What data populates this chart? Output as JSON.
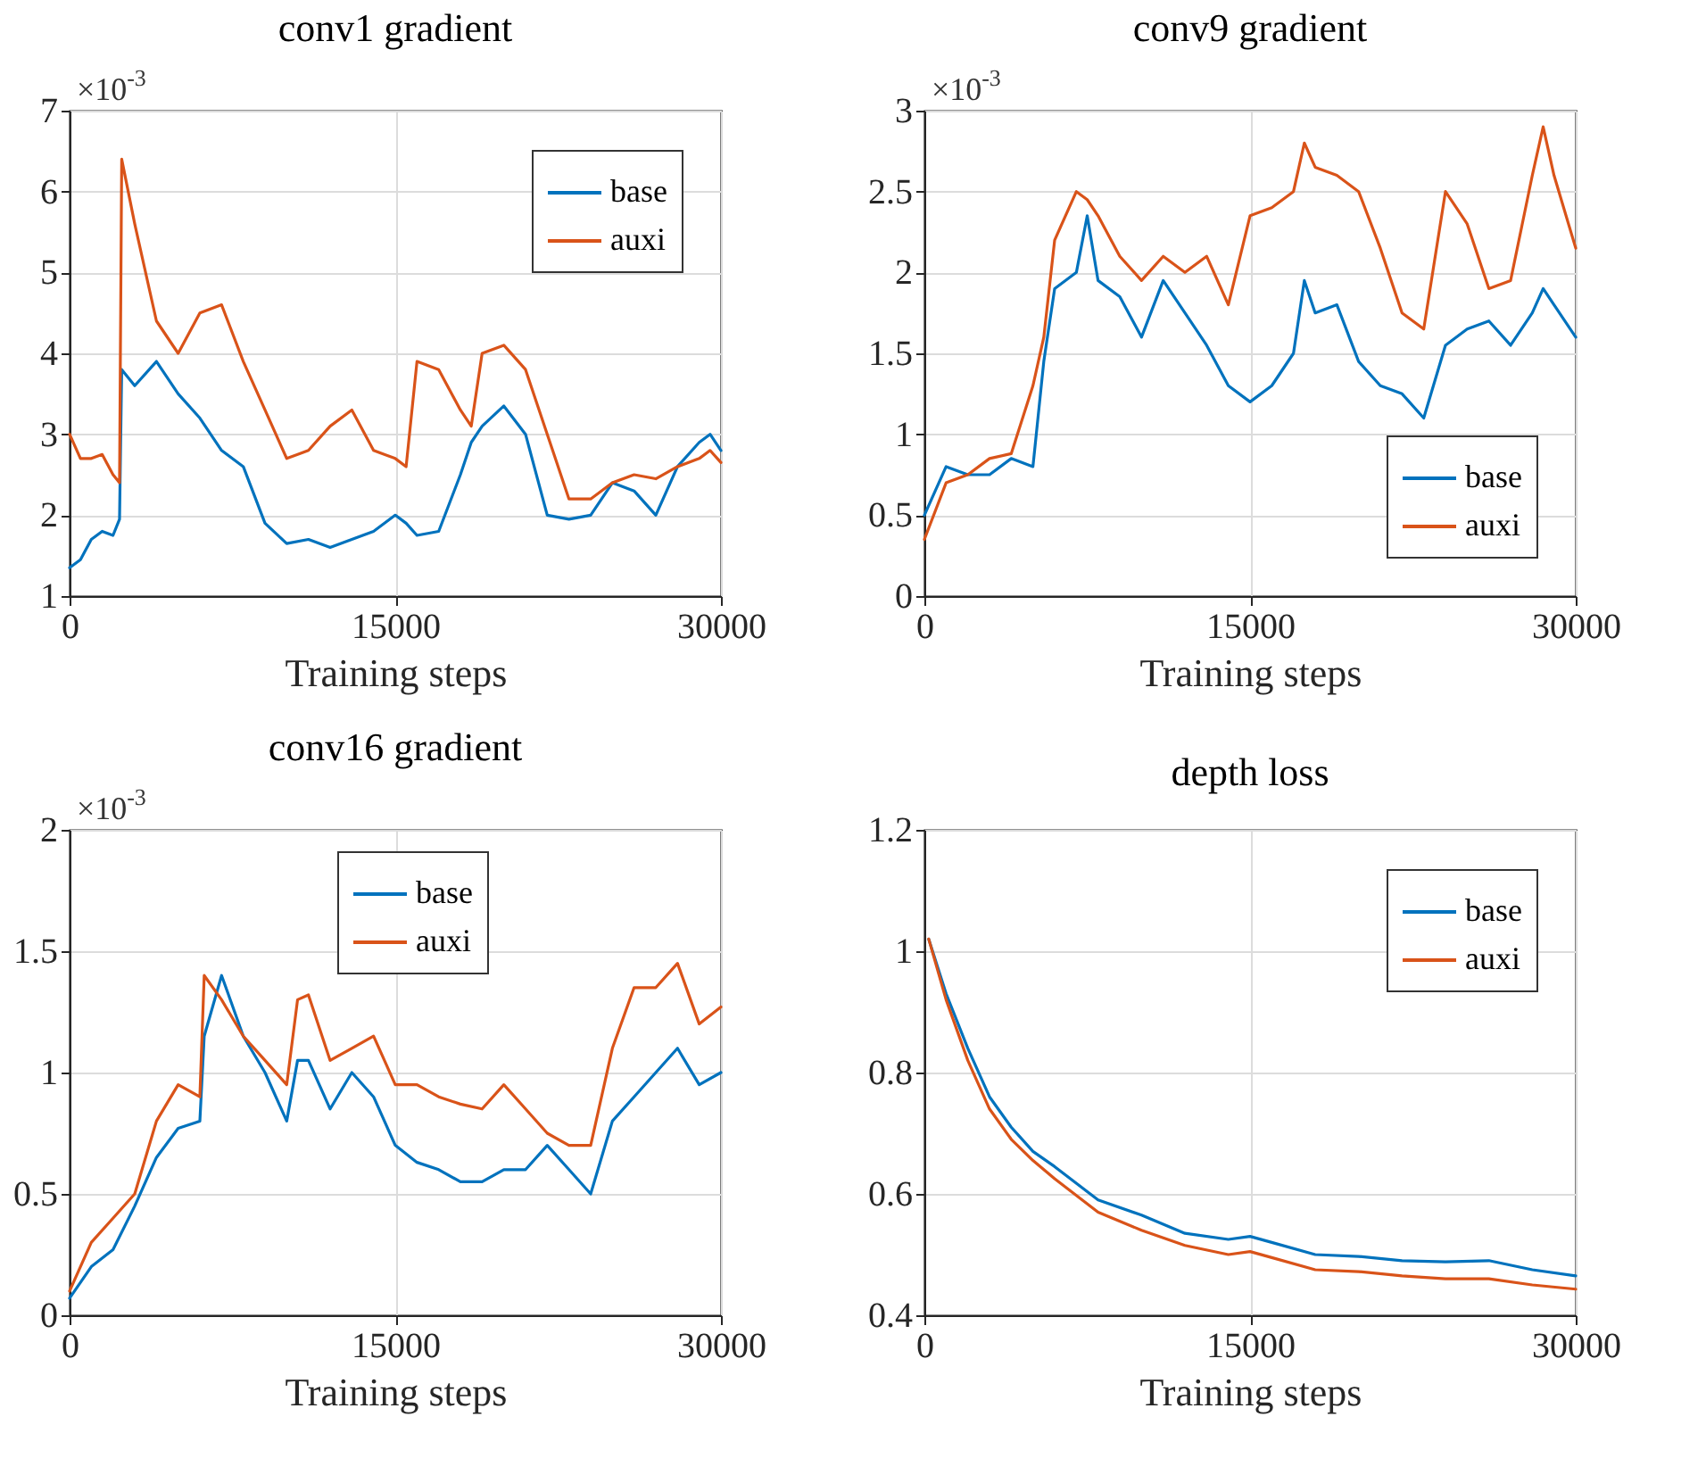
{
  "chart_data": [
    {
      "type": "line",
      "title": "conv1 gradient",
      "xlabel": "Training steps",
      "annotations": [
        "×10$^{-3}$"
      ],
      "xlim": [
        0,
        30000
      ],
      "xticks": [
        0,
        15000,
        30000
      ],
      "ylim": [
        1,
        7
      ],
      "yticks": [
        1,
        2,
        3,
        4,
        5,
        6,
        7
      ],
      "grid": true,
      "legend": "top right",
      "x": [
        0,
        500,
        1000,
        1500,
        2000,
        2300,
        2400,
        3000,
        4000,
        5000,
        6000,
        7000,
        8000,
        9000,
        10000,
        11000,
        12000,
        13000,
        14000,
        15000,
        15500,
        16000,
        17000,
        18000,
        18500,
        19000,
        20000,
        21000,
        22000,
        23000,
        24000,
        25000,
        26000,
        27000,
        28000,
        29000,
        29500,
        30000
      ],
      "series": [
        {
          "name": "base",
          "color": "#0072bd",
          "values": [
            1.35,
            1.45,
            1.7,
            1.8,
            1.75,
            1.95,
            3.8,
            3.6,
            3.9,
            3.5,
            3.2,
            2.8,
            2.6,
            1.9,
            1.65,
            1.7,
            1.6,
            1.7,
            1.8,
            2.0,
            1.9,
            1.75,
            1.8,
            2.5,
            2.9,
            3.1,
            3.35,
            3.0,
            2.0,
            1.95,
            2.0,
            2.4,
            2.3,
            2.0,
            2.6,
            2.9,
            3.0,
            2.8
          ]
        },
        {
          "name": "auxi",
          "color": "#d95319",
          "values": [
            3.0,
            2.7,
            2.7,
            2.75,
            2.5,
            2.4,
            6.4,
            5.6,
            4.4,
            4.0,
            4.5,
            4.6,
            3.9,
            3.3,
            2.7,
            2.8,
            3.1,
            3.3,
            2.8,
            2.7,
            2.6,
            3.9,
            3.8,
            3.3,
            3.1,
            4.0,
            4.1,
            3.8,
            3.0,
            2.2,
            2.2,
            2.4,
            2.5,
            2.45,
            2.6,
            2.7,
            2.8,
            2.65
          ]
        }
      ]
    },
    {
      "type": "line",
      "title": "conv9 gradient",
      "xlabel": "Training steps",
      "annotations": [
        "×10$^{-3}$"
      ],
      "xlim": [
        0,
        30000
      ],
      "xticks": [
        0,
        15000,
        30000
      ],
      "ylim": [
        0,
        3
      ],
      "yticks": [
        0,
        0.5,
        1,
        1.5,
        2,
        2.5,
        3
      ],
      "grid": true,
      "legend": "bottom right",
      "x": [
        0,
        1000,
        2000,
        3000,
        4000,
        5000,
        5500,
        6000,
        7000,
        7500,
        8000,
        9000,
        10000,
        11000,
        12000,
        13000,
        14000,
        15000,
        16000,
        17000,
        17500,
        18000,
        19000,
        20000,
        21000,
        22000,
        23000,
        24000,
        25000,
        26000,
        27000,
        28000,
        28500,
        29000,
        30000
      ],
      "series": [
        {
          "name": "base",
          "color": "#0072bd",
          "values": [
            0.5,
            0.8,
            0.75,
            0.75,
            0.85,
            0.8,
            1.45,
            1.9,
            2.0,
            2.35,
            1.95,
            1.85,
            1.6,
            1.95,
            1.75,
            1.55,
            1.3,
            1.2,
            1.3,
            1.5,
            1.95,
            1.75,
            1.8,
            1.45,
            1.3,
            1.25,
            1.1,
            1.55,
            1.65,
            1.7,
            1.55,
            1.75,
            1.9,
            1.8,
            1.6
          ]
        },
        {
          "name": "auxi",
          "color": "#d95319",
          "values": [
            0.35,
            0.7,
            0.75,
            0.85,
            0.88,
            1.3,
            1.6,
            2.2,
            2.5,
            2.45,
            2.35,
            2.1,
            1.95,
            2.1,
            2.0,
            2.1,
            1.8,
            2.35,
            2.4,
            2.5,
            2.8,
            2.65,
            2.6,
            2.5,
            2.15,
            1.75,
            1.65,
            2.5,
            2.3,
            1.9,
            1.95,
            2.6,
            2.9,
            2.6,
            2.15
          ]
        }
      ]
    },
    {
      "type": "line",
      "title": "conv16 gradient",
      "xlabel": "Training steps",
      "annotations": [
        "×10$^{-3}$"
      ],
      "xlim": [
        0,
        30000
      ],
      "xticks": [
        0,
        15000,
        30000
      ],
      "ylim": [
        0,
        2
      ],
      "yticks": [
        0,
        0.5,
        1,
        1.5,
        2
      ],
      "grid": true,
      "legend": "top",
      "x": [
        0,
        1000,
        2000,
        3000,
        4000,
        5000,
        6000,
        6200,
        7000,
        8000,
        9000,
        10000,
        10500,
        11000,
        12000,
        13000,
        14000,
        15000,
        16000,
        17000,
        18000,
        19000,
        20000,
        21000,
        22000,
        23000,
        24000,
        25000,
        26000,
        27000,
        28000,
        29000,
        30000
      ],
      "series": [
        {
          "name": "base",
          "color": "#0072bd",
          "values": [
            0.07,
            0.2,
            0.27,
            0.45,
            0.65,
            0.77,
            0.8,
            1.15,
            1.4,
            1.15,
            1.0,
            0.8,
            1.05,
            1.05,
            0.85,
            1.0,
            0.9,
            0.7,
            0.63,
            0.6,
            0.55,
            0.55,
            0.6,
            0.6,
            0.7,
            0.6,
            0.5,
            0.8,
            0.9,
            1.0,
            1.1,
            0.95,
            1.0
          ]
        },
        {
          "name": "auxi",
          "color": "#d95319",
          "values": [
            0.1,
            0.3,
            0.4,
            0.5,
            0.8,
            0.95,
            0.9,
            1.4,
            1.3,
            1.15,
            1.05,
            0.95,
            1.3,
            1.32,
            1.05,
            1.1,
            1.15,
            0.95,
            0.95,
            0.9,
            0.87,
            0.85,
            0.95,
            0.85,
            0.75,
            0.7,
            0.7,
            1.1,
            1.35,
            1.35,
            1.45,
            1.2,
            1.27
          ]
        }
      ]
    },
    {
      "type": "line",
      "title": "depth loss",
      "xlabel": "Training steps",
      "xlim": [
        0,
        30000
      ],
      "xticks": [
        0,
        15000,
        30000
      ],
      "ylim": [
        0.4,
        1.2
      ],
      "yticks": [
        0.4,
        0.6,
        0.8,
        1,
        1.2
      ],
      "grid": true,
      "legend": "top right",
      "x": [
        200,
        1000,
        2000,
        3000,
        4000,
        5000,
        6000,
        8000,
        10000,
        12000,
        14000,
        15000,
        16000,
        18000,
        20000,
        22000,
        24000,
        26000,
        28000,
        30000
      ],
      "series": [
        {
          "name": "base",
          "color": "#0072bd",
          "values": [
            1.02,
            0.93,
            0.84,
            0.76,
            0.71,
            0.67,
            0.645,
            0.59,
            0.565,
            0.535,
            0.525,
            0.53,
            0.52,
            0.5,
            0.497,
            0.49,
            0.488,
            0.49,
            0.475,
            0.465
          ]
        },
        {
          "name": "auxi",
          "color": "#d95319",
          "values": [
            1.02,
            0.92,
            0.82,
            0.74,
            0.69,
            0.655,
            0.625,
            0.57,
            0.54,
            0.515,
            0.5,
            0.505,
            0.495,
            0.475,
            0.472,
            0.465,
            0.46,
            0.46,
            0.45,
            0.443
          ]
        }
      ]
    }
  ]
}
